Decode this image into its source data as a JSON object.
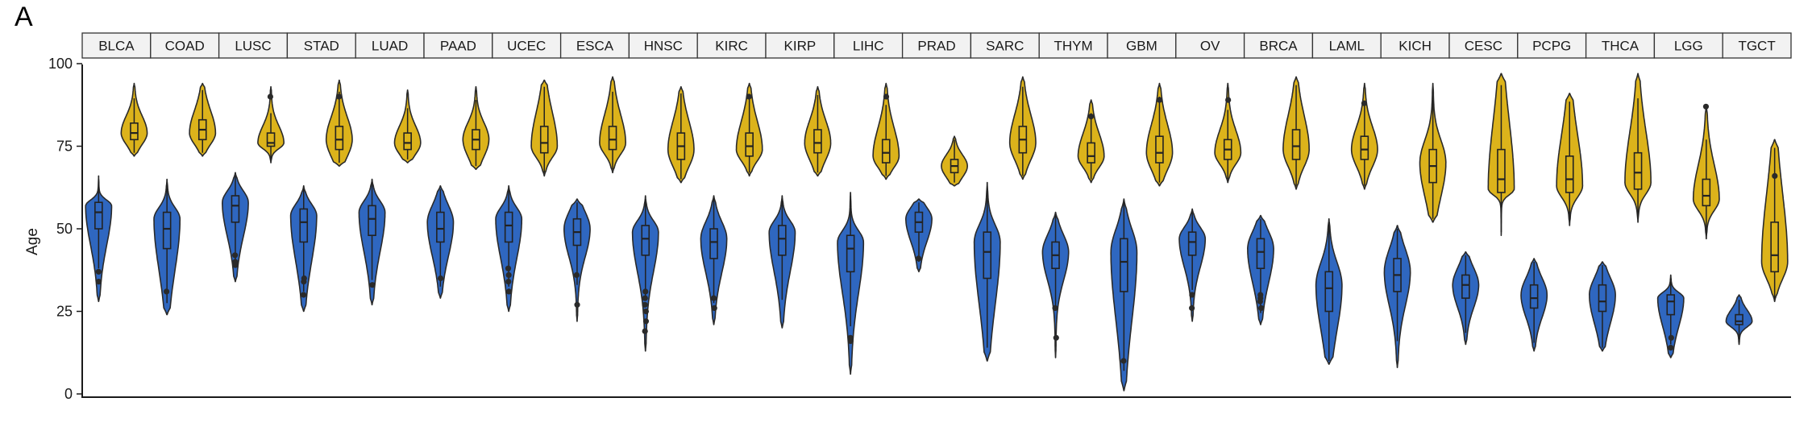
{
  "panel_label": "A",
  "chart_data": {
    "type": "violin",
    "ylabel": "Age",
    "xlabel": "",
    "ylim": [
      0,
      100
    ],
    "yticks": [
      0,
      25,
      50,
      75,
      100
    ],
    "grid": false,
    "colors": {
      "young": "#2f67c0",
      "old": "#dcb31b",
      "outline": "#2a2a2a"
    },
    "groups": [
      {
        "name": "BLCA",
        "violins": [
          {
            "color": "young",
            "min": 28,
            "max": 66,
            "q1": 50,
            "median": 55,
            "q3": 58,
            "peak": 57,
            "outliers": [
              37,
              34
            ]
          },
          {
            "color": "old",
            "min": 72,
            "max": 94,
            "q1": 77,
            "median": 79,
            "q3": 82,
            "peak": 79,
            "outliers": []
          }
        ]
      },
      {
        "name": "COAD",
        "violins": [
          {
            "color": "young",
            "min": 24,
            "max": 65,
            "q1": 44,
            "median": 50,
            "q3": 55,
            "peak": 53,
            "outliers": [
              31
            ]
          },
          {
            "color": "old",
            "min": 72,
            "max": 94,
            "q1": 77,
            "median": 80,
            "q3": 83,
            "peak": 79,
            "outliers": []
          }
        ]
      },
      {
        "name": "LUSC",
        "violins": [
          {
            "color": "young",
            "min": 34,
            "max": 67,
            "q1": 52,
            "median": 57,
            "q3": 60,
            "peak": 58,
            "outliers": [
              42,
              40,
              39
            ]
          },
          {
            "color": "old",
            "min": 70,
            "max": 93,
            "q1": 75,
            "median": 76,
            "q3": 79,
            "peak": 76,
            "outliers": [
              90
            ]
          }
        ]
      },
      {
        "name": "STAD",
        "violins": [
          {
            "color": "young",
            "min": 25,
            "max": 63,
            "q1": 46,
            "median": 52,
            "q3": 56,
            "peak": 54,
            "outliers": [
              35,
              34,
              30
            ]
          },
          {
            "color": "old",
            "min": 69,
            "max": 95,
            "q1": 74,
            "median": 77,
            "q3": 81,
            "peak": 77,
            "outliers": [
              90
            ]
          }
        ]
      },
      {
        "name": "LUAD",
        "violins": [
          {
            "color": "young",
            "min": 27,
            "max": 65,
            "q1": 48,
            "median": 53,
            "q3": 57,
            "peak": 55,
            "outliers": [
              33
            ]
          },
          {
            "color": "old",
            "min": 70,
            "max": 92,
            "q1": 74,
            "median": 76,
            "q3": 79,
            "peak": 76,
            "outliers": []
          }
        ]
      },
      {
        "name": "PAAD",
        "violins": [
          {
            "color": "young",
            "min": 29,
            "max": 63,
            "q1": 46,
            "median": 50,
            "q3": 55,
            "peak": 52,
            "outliers": [
              35
            ]
          },
          {
            "color": "old",
            "min": 68,
            "max": 93,
            "q1": 74,
            "median": 77,
            "q3": 80,
            "peak": 77,
            "outliers": []
          }
        ]
      },
      {
        "name": "UCEC",
        "violins": [
          {
            "color": "young",
            "min": 25,
            "max": 63,
            "q1": 46,
            "median": 51,
            "q3": 55,
            "peak": 53,
            "outliers": [
              38,
              36,
              34,
              31
            ]
          },
          {
            "color": "old",
            "min": 66,
            "max": 95,
            "q1": 73,
            "median": 76,
            "q3": 81,
            "peak": 75,
            "outliers": []
          }
        ]
      },
      {
        "name": "ESCA",
        "violins": [
          {
            "color": "young",
            "min": 22,
            "max": 59,
            "q1": 45,
            "median": 49,
            "q3": 53,
            "peak": 50,
            "outliers": [
              36,
              27
            ]
          },
          {
            "color": "old",
            "min": 67,
            "max": 96,
            "q1": 74,
            "median": 77,
            "q3": 81,
            "peak": 76,
            "outliers": []
          }
        ]
      },
      {
        "name": "HNSC",
        "violins": [
          {
            "color": "young",
            "min": 13,
            "max": 60,
            "q1": 42,
            "median": 47,
            "q3": 51,
            "peak": 49,
            "outliers": [
              31,
              29,
              27,
              25,
              22,
              19
            ]
          },
          {
            "color": "old",
            "min": 64,
            "max": 93,
            "q1": 71,
            "median": 75,
            "q3": 79,
            "peak": 74,
            "outliers": []
          }
        ]
      },
      {
        "name": "KIRC",
        "violins": [
          {
            "color": "young",
            "min": 21,
            "max": 60,
            "q1": 41,
            "median": 46,
            "q3": 50,
            "peak": 47,
            "outliers": [
              29,
              26
            ]
          },
          {
            "color": "old",
            "min": 66,
            "max": 94,
            "q1": 72,
            "median": 75,
            "q3": 79,
            "peak": 74,
            "outliers": [
              90
            ]
          }
        ]
      },
      {
        "name": "KIRP",
        "violins": [
          {
            "color": "young",
            "min": 20,
            "max": 60,
            "q1": 42,
            "median": 47,
            "q3": 51,
            "peak": 49,
            "outliers": []
          },
          {
            "color": "old",
            "min": 66,
            "max": 93,
            "q1": 73,
            "median": 76,
            "q3": 80,
            "peak": 76,
            "outliers": []
          }
        ]
      },
      {
        "name": "LIHC",
        "violins": [
          {
            "color": "young",
            "min": 6,
            "max": 61,
            "q1": 37,
            "median": 44,
            "q3": 48,
            "peak": 46,
            "outliers": [
              17,
              16
            ]
          },
          {
            "color": "old",
            "min": 65,
            "max": 94,
            "q1": 70,
            "median": 73,
            "q3": 77,
            "peak": 72,
            "outliers": [
              90
            ]
          }
        ]
      },
      {
        "name": "PRAD",
        "violins": [
          {
            "color": "young",
            "min": 37,
            "max": 59,
            "q1": 49,
            "median": 52,
            "q3": 55,
            "peak": 53,
            "outliers": [
              41
            ]
          },
          {
            "color": "old",
            "min": 63,
            "max": 78,
            "q1": 67,
            "median": 69,
            "q3": 71,
            "peak": 69,
            "outliers": []
          }
        ]
      },
      {
        "name": "SARC",
        "violins": [
          {
            "color": "young",
            "min": 10,
            "max": 64,
            "q1": 35,
            "median": 43,
            "q3": 49,
            "peak": 46,
            "outliers": []
          },
          {
            "color": "old",
            "min": 65,
            "max": 96,
            "q1": 73,
            "median": 77,
            "q3": 81,
            "peak": 76,
            "outliers": []
          }
        ]
      },
      {
        "name": "THYM",
        "violins": [
          {
            "color": "young",
            "min": 11,
            "max": 55,
            "q1": 38,
            "median": 42,
            "q3": 46,
            "peak": 43,
            "outliers": [
              26,
              17
            ]
          },
          {
            "color": "old",
            "min": 64,
            "max": 89,
            "q1": 70,
            "median": 72,
            "q3": 76,
            "peak": 72,
            "outliers": [
              84
            ]
          }
        ]
      },
      {
        "name": "GBM",
        "violins": [
          {
            "color": "young",
            "min": 1,
            "max": 59,
            "q1": 31,
            "median": 40,
            "q3": 47,
            "peak": 43,
            "outliers": [
              10
            ]
          },
          {
            "color": "old",
            "min": 63,
            "max": 94,
            "q1": 70,
            "median": 73,
            "q3": 78,
            "peak": 73,
            "outliers": [
              89
            ]
          }
        ]
      },
      {
        "name": "OV",
        "violins": [
          {
            "color": "young",
            "min": 22,
            "max": 56,
            "q1": 42,
            "median": 46,
            "q3": 49,
            "peak": 47,
            "outliers": [
              30,
              26
            ]
          },
          {
            "color": "old",
            "min": 64,
            "max": 94,
            "q1": 71,
            "median": 74,
            "q3": 77,
            "peak": 73,
            "outliers": [
              89
            ]
          }
        ]
      },
      {
        "name": "BRCA",
        "violins": [
          {
            "color": "young",
            "min": 21,
            "max": 54,
            "q1": 38,
            "median": 43,
            "q3": 47,
            "peak": 44,
            "outliers": [
              30,
              29,
              28,
              26
            ]
          },
          {
            "color": "old",
            "min": 62,
            "max": 96,
            "q1": 71,
            "median": 75,
            "q3": 80,
            "peak": 74,
            "outliers": []
          }
        ]
      },
      {
        "name": "LAML",
        "violins": [
          {
            "color": "young",
            "min": 9,
            "max": 53,
            "q1": 25,
            "median": 32,
            "q3": 37,
            "peak": 33,
            "outliers": []
          },
          {
            "color": "old",
            "min": 62,
            "max": 94,
            "q1": 71,
            "median": 74,
            "q3": 78,
            "peak": 74,
            "outliers": [
              88
            ]
          }
        ]
      },
      {
        "name": "KICH",
        "violins": [
          {
            "color": "young",
            "min": 8,
            "max": 51,
            "q1": 31,
            "median": 36,
            "q3": 41,
            "peak": 37,
            "outliers": []
          },
          {
            "color": "old",
            "min": 52,
            "max": 94,
            "q1": 64,
            "median": 69,
            "q3": 74,
            "peak": 70,
            "outliers": []
          }
        ]
      },
      {
        "name": "CESC",
        "violins": [
          {
            "color": "young",
            "min": 15,
            "max": 43,
            "q1": 29,
            "median": 33,
            "q3": 36,
            "peak": 33,
            "outliers": []
          },
          {
            "color": "old",
            "min": 48,
            "max": 97,
            "q1": 61,
            "median": 65,
            "q3": 74,
            "peak": 62,
            "outliers": []
          }
        ]
      },
      {
        "name": "PCPG",
        "violins": [
          {
            "color": "young",
            "min": 13,
            "max": 41,
            "q1": 26,
            "median": 29,
            "q3": 33,
            "peak": 30,
            "outliers": []
          },
          {
            "color": "old",
            "min": 51,
            "max": 91,
            "q1": 61,
            "median": 65,
            "q3": 72,
            "peak": 63,
            "outliers": []
          }
        ]
      },
      {
        "name": "THCA",
        "violins": [
          {
            "color": "young",
            "min": 13,
            "max": 40,
            "q1": 25,
            "median": 28,
            "q3": 33,
            "peak": 30,
            "outliers": []
          },
          {
            "color": "old",
            "min": 52,
            "max": 97,
            "q1": 62,
            "median": 67,
            "q3": 73,
            "peak": 64,
            "outliers": []
          }
        ]
      },
      {
        "name": "LGG",
        "violins": [
          {
            "color": "young",
            "min": 11,
            "max": 36,
            "q1": 24,
            "median": 28,
            "q3": 30,
            "peak": 29,
            "outliers": [
              17,
              14
            ]
          },
          {
            "color": "old",
            "min": 47,
            "max": 87,
            "q1": 57,
            "median": 60,
            "q3": 65,
            "peak": 59,
            "outliers": [
              87
            ]
          }
        ]
      },
      {
        "name": "TGCT",
        "violins": [
          {
            "color": "young",
            "min": 15,
            "max": 30,
            "q1": 21,
            "median": 22,
            "q3": 24,
            "peak": 22,
            "outliers": []
          },
          {
            "color": "old",
            "min": 28,
            "max": 77,
            "q1": 37,
            "median": 42,
            "q3": 52,
            "peak": 40,
            "outliers": [
              66
            ]
          }
        ]
      }
    ]
  }
}
